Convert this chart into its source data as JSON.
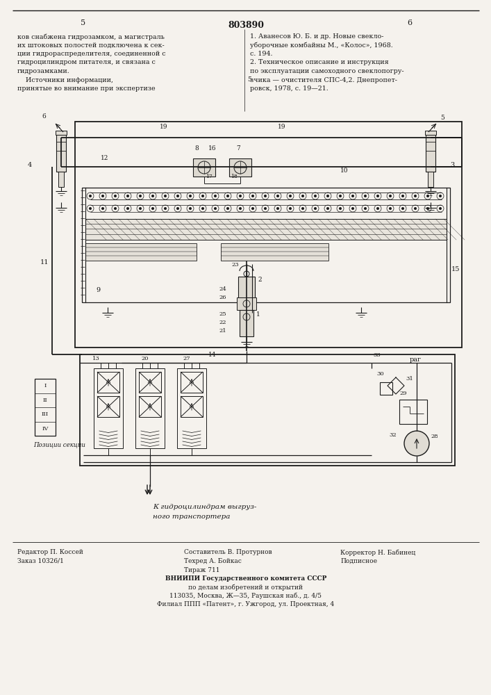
{
  "patent_number": "803890",
  "page_left": "5",
  "page_right": "6",
  "bg_color": "#f5f2ed",
  "text_color": "#1a1a1a",
  "left_column_text": [
    "ков снабжена гидрозамком, а магистраль",
    "их штоковых полостей подключена к сек-",
    "ции гидрораспределителя, соединенной с",
    "гидроцилиндром питателя, и связана с",
    "гидрозамками.",
    "    Источники информации,",
    "принятые во внимание при экспертизе"
  ],
  "right_column_text": [
    "1. Аванесов Ю. Б. и др. Новые свекло-",
    "уборочные комбайны М., «Колос», 1968.",
    "с. 194.",
    "2. Техническое описание и инструкция",
    "по эксплуатации самоходного свеклопогру-",
    "зчика — очистителя СПС-4,2. Днепропет-",
    "ровск, 1978, с. 19—21."
  ],
  "bottom_left_text": [
    "Редактор П. Коссей",
    "Заказ 10326/1"
  ],
  "bottom_center_text": [
    "Составитель В. Протурнов",
    "Техред А. Бойкас",
    "Тираж 711"
  ],
  "bottom_right_text": [
    "Корректор Н. Бабинец",
    "Подписное"
  ],
  "vniipi_text": [
    "ВНИИПИ Государственного комитета СССР",
    "по делам изобретений и открытий",
    "113035, Москва, Ж—35, Раушская наб., д. 4/5",
    "Филиал ППП «Патент», г. Ужгород, ул. Проектная, 4"
  ],
  "caption_line1": "К гидроцилиндрам выгруз-",
  "caption_line2": "ного транспортера",
  "rag_label": "раг",
  "positions_labels": [
    "IV",
    "III",
    "II",
    "I"
  ],
  "positions_title": "Позиции секции"
}
